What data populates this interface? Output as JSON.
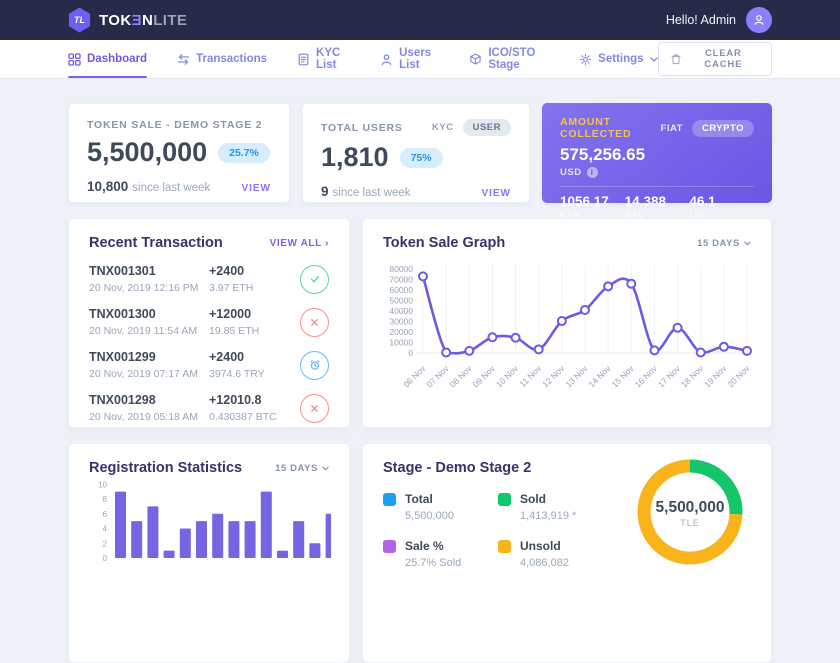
{
  "topbar": {
    "brand": {
      "monogram": "TL",
      "part1": "TOK",
      "part2": "Ǝ",
      "part3": "N",
      "part4": "LITE"
    },
    "greeting": "Hello! Admin"
  },
  "nav": {
    "items": [
      {
        "label": "Dashboard",
        "active": true
      },
      {
        "label": "Transactions",
        "active": false
      },
      {
        "label": "KYC List",
        "active": false
      },
      {
        "label": "Users List",
        "active": false
      },
      {
        "label": "ICO/STO Stage",
        "active": false
      },
      {
        "label": "Settings",
        "active": false
      }
    ],
    "clear_cache_label": "CLEAR CACHE"
  },
  "summary": {
    "token_sale": {
      "title": "TOKEN SALE - DEMO STAGE 2",
      "value": "5,500,000",
      "badge": "25.7%",
      "delta": "10,800",
      "delta_caption": "since last week",
      "view_label": "VIEW"
    },
    "total_users": {
      "title": "TOTAL USERS",
      "toggle_kyc": "KYC",
      "toggle_user": "USER",
      "value": "1,810",
      "badge": "75%",
      "delta": "9",
      "delta_caption": "since last week",
      "view_label": "VIEW"
    },
    "amount_collected": {
      "title": "AMOUNT COLLECTED",
      "toggle_fiat": "FIAT",
      "toggle_crypto": "CRYPTO",
      "value": "575,256.65",
      "currency": "USD",
      "info_icon": "i",
      "coins": [
        {
          "value": "1056.17",
          "unit": "ETH"
        },
        {
          "value": "14.388",
          "unit": "BTC"
        },
        {
          "value": "46.1",
          "unit": "LTC"
        }
      ]
    }
  },
  "transactions": {
    "title": "Recent Transaction",
    "view_all_label": "VIEW ALL",
    "view_all_arrow": "›",
    "rows": [
      {
        "id": "TNX001301",
        "date": "20 Nov, 2019 12:16 PM",
        "amount": "+2400",
        "equiv": "3.97 ETH",
        "status": "success"
      },
      {
        "id": "TNX001300",
        "date": "20 Nov, 2019 11:54 AM",
        "amount": "+12000",
        "equiv": "19.85 ETH",
        "status": "failed"
      },
      {
        "id": "TNX001299",
        "date": "20 Nov, 2019 07:17 AM",
        "amount": "+2400",
        "equiv": "3974.6 TRY",
        "status": "pending"
      },
      {
        "id": "TNX001298",
        "date": "20 Nov, 2019 05:18 AM",
        "amount": "+12010.8",
        "equiv": "0.430387 BTC",
        "status": "failed"
      }
    ]
  },
  "token_sale_graph": {
    "title": "Token Sale Graph",
    "range_label": "15 DAYS"
  },
  "registration_stats": {
    "title": "Registration Statistics",
    "range_label": "15 DAYS"
  },
  "stage": {
    "title": "Stage - Demo Stage 2",
    "legend": [
      {
        "label": "Total",
        "value": "5,500,000",
        "color": "#1e9ff2"
      },
      {
        "label": "Sold",
        "value": "1,413,919 *",
        "color": "#13c56b"
      },
      {
        "label": "Sale %",
        "value": "25.7% Sold",
        "color": "#b163e3"
      },
      {
        "label": "Unsold",
        "value": "4,086,082",
        "color": "#f9b31b"
      }
    ],
    "center_value": "5,500,000",
    "center_label": "TLE"
  },
  "chart_data": [
    {
      "type": "line",
      "title": "Token Sale Graph",
      "x": [
        "06 Nov",
        "07 Nov",
        "08 Nov",
        "09 Nov",
        "10 Nov",
        "11 Nov",
        "12 Nov",
        "13 Nov",
        "14 Nov",
        "15 Nov",
        "16 Nov",
        "17 Nov",
        "18 Nov",
        "19 Nov",
        "20 Nov"
      ],
      "values": [
        73000,
        500,
        2000,
        15000,
        14500,
        3500,
        30500,
        41000,
        63500,
        66000,
        2500,
        24000,
        500,
        6000,
        2000
      ],
      "ylim": [
        0,
        80000
      ],
      "ytick_step": 10000,
      "line_color": "#685ce6",
      "grid": "vertical",
      "legend_position": "none"
    },
    {
      "type": "bar",
      "title": "Registration Statistics",
      "values": [
        9,
        5,
        7,
        1,
        4,
        5,
        6,
        5,
        5,
        9,
        1,
        5,
        2,
        6
      ],
      "ylim": [
        0,
        10
      ],
      "ytick_step": 2,
      "bar_color": "#7466e3",
      "grid": "off",
      "legend_position": "none"
    },
    {
      "type": "donut",
      "title": "Stage - Demo Stage 2",
      "segments": [
        {
          "name": "Sold",
          "pct": 25.7,
          "color": "#13c56b"
        },
        {
          "name": "Unsold",
          "pct": 74.3,
          "color": "#f9b31b"
        }
      ],
      "center_value": "5,500,000",
      "center_label": "TLE"
    }
  ],
  "colors": {
    "accent": "#6b5ce6",
    "topbar_bg": "#262b49",
    "badge_text": "#2196f3",
    "success": "#5ad6a2",
    "danger": "#f5918c",
    "pending": "#6cb7f5",
    "gold_title": "#f6c14e"
  }
}
